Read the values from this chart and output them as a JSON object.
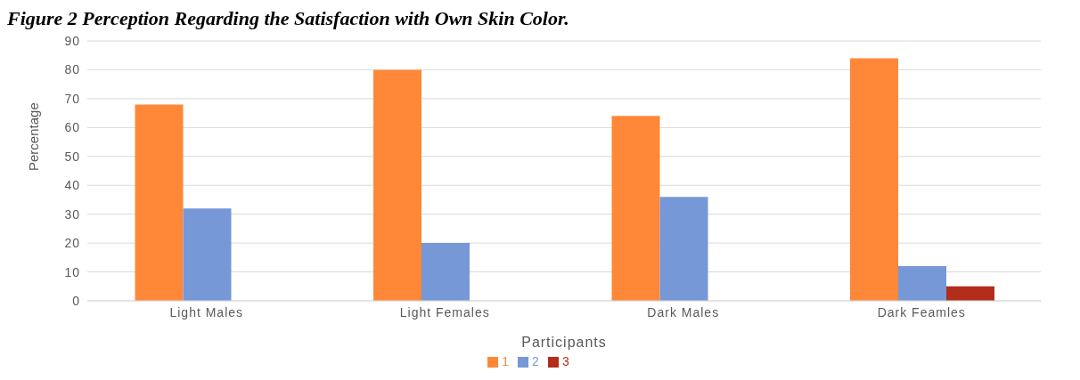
{
  "chart_data": {
    "type": "bar",
    "title": "Figure 2 Perception Regarding the Satisfaction with Own Skin Color.",
    "xlabel": "Participants",
    "ylabel": "Percentage",
    "categories": [
      "Light Males",
      "Light Females",
      "Dark Males",
      "Dark Feamles"
    ],
    "series": [
      {
        "name": "1",
        "color": "#ff8838",
        "values": [
          68,
          80,
          64,
          84
        ]
      },
      {
        "name": "2",
        "color": "#7698d6",
        "values": [
          32,
          20,
          36,
          12
        ]
      },
      {
        "name": "3",
        "color": "#b22d1a",
        "values": [
          null,
          null,
          null,
          5
        ]
      }
    ],
    "ylim": [
      0,
      90
    ],
    "yticks": [
      0,
      10,
      20,
      30,
      40,
      50,
      60,
      70,
      80,
      90
    ],
    "grid": "y",
    "legend": "bottom"
  }
}
